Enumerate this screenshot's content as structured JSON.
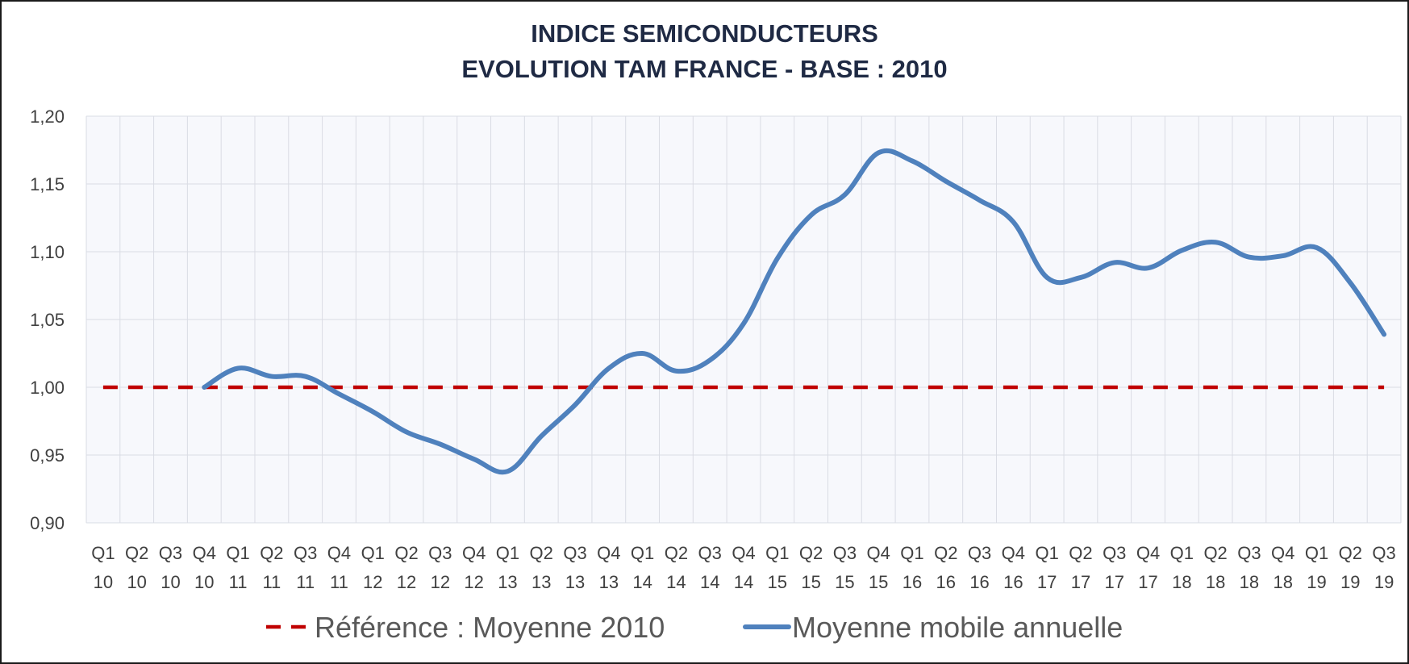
{
  "chart_data": {
    "type": "line",
    "title": "INDICE SEMICONDUCTEURS",
    "subtitle": "EVOLUTION TAM FRANCE  - BASE : 2010",
    "categories": [
      [
        "Q1",
        "10"
      ],
      [
        "Q2",
        "10"
      ],
      [
        "Q3",
        "10"
      ],
      [
        "Q4",
        "10"
      ],
      [
        "Q1",
        "11"
      ],
      [
        "Q2",
        "11"
      ],
      [
        "Q3",
        "11"
      ],
      [
        "Q4",
        "11"
      ],
      [
        "Q1",
        "12"
      ],
      [
        "Q2",
        "12"
      ],
      [
        "Q3",
        "12"
      ],
      [
        "Q4",
        "12"
      ],
      [
        "Q1",
        "13"
      ],
      [
        "Q2",
        "13"
      ],
      [
        "Q3",
        "13"
      ],
      [
        "Q4",
        "13"
      ],
      [
        "Q1",
        "14"
      ],
      [
        "Q2",
        "14"
      ],
      [
        "Q3",
        "14"
      ],
      [
        "Q4",
        "14"
      ],
      [
        "Q1",
        "15"
      ],
      [
        "Q2",
        "15"
      ],
      [
        "Q3",
        "15"
      ],
      [
        "Q4",
        "15"
      ],
      [
        "Q1",
        "16"
      ],
      [
        "Q2",
        "16"
      ],
      [
        "Q3",
        "16"
      ],
      [
        "Q4",
        "16"
      ],
      [
        "Q1",
        "17"
      ],
      [
        "Q2",
        "17"
      ],
      [
        "Q3",
        "17"
      ],
      [
        "Q4",
        "17"
      ],
      [
        "Q1",
        "18"
      ],
      [
        "Q2",
        "18"
      ],
      [
        "Q3",
        "18"
      ],
      [
        "Q4",
        "18"
      ],
      [
        "Q1",
        "19"
      ],
      [
        "Q2",
        "19"
      ],
      [
        "Q3",
        "19"
      ]
    ],
    "ylim": [
      0.9,
      1.2
    ],
    "yticks": [
      {
        "value": 0.9,
        "label": "0,90"
      },
      {
        "value": 0.95,
        "label": "0,95"
      },
      {
        "value": 1.0,
        "label": "1,00"
      },
      {
        "value": 1.05,
        "label": "1,05"
      },
      {
        "value": 1.1,
        "label": "1,10"
      },
      {
        "value": 1.15,
        "label": "1,15"
      },
      {
        "value": 1.2,
        "label": "1,20"
      }
    ],
    "grid": true,
    "legend_position": "bottom",
    "series": [
      {
        "name": "Référence : Moyenne 2010",
        "color": "#c00000",
        "style": "dashed",
        "values": [
          1.0,
          1.0,
          1.0,
          1.0,
          1.0,
          1.0,
          1.0,
          1.0,
          1.0,
          1.0,
          1.0,
          1.0,
          1.0,
          1.0,
          1.0,
          1.0,
          1.0,
          1.0,
          1.0,
          1.0,
          1.0,
          1.0,
          1.0,
          1.0,
          1.0,
          1.0,
          1.0,
          1.0,
          1.0,
          1.0,
          1.0,
          1.0,
          1.0,
          1.0,
          1.0,
          1.0,
          1.0,
          1.0,
          1.0
        ]
      },
      {
        "name": "Moyenne mobile annuelle",
        "color": "#4f81bd",
        "style": "solid",
        "values": [
          null,
          null,
          null,
          1.0,
          1.014,
          1.008,
          1.008,
          0.995,
          0.982,
          0.967,
          0.958,
          0.947,
          0.938,
          0.964,
          0.987,
          1.014,
          1.025,
          1.012,
          1.02,
          1.047,
          1.095,
          1.127,
          1.142,
          1.173,
          1.167,
          1.152,
          1.138,
          1.122,
          1.081,
          1.081,
          1.092,
          1.088,
          1.101,
          1.107,
          1.096,
          1.097,
          1.103,
          1.077,
          1.039
        ]
      }
    ]
  }
}
